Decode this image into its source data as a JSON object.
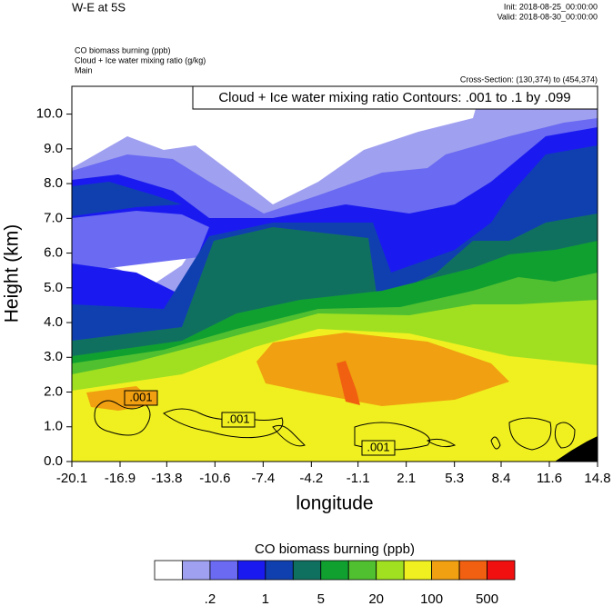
{
  "chart_data": {
    "type": "contour",
    "title": "W-E at 5S",
    "init": "Init: 2018-08-25_00:00:00",
    "valid": "Valid: 2018-08-30_00:00:00",
    "fields": [
      "CO biomass burning   (ppb)",
      "Cloud + Ice water mixing ratio   (g/kg)",
      "Main"
    ],
    "cross_section": "Cross-Section: (130,374) to (454,374)",
    "contour_info": "Cloud + Ice water mixing ratio Contours: .001 to .1 by .099",
    "contour_labels": [
      ".001",
      ".001",
      ".001"
    ],
    "xlabel": "longitude",
    "ylabel": "Height (km)",
    "xlim": [
      -20.1,
      14.8
    ],
    "xticks": [
      -20.1,
      -16.9,
      -13.8,
      -10.6,
      -7.4,
      -4.2,
      -1.1,
      2.1,
      5.3,
      8.4,
      11.6,
      14.8
    ],
    "ylim": [
      0,
      10.8
    ],
    "yticks": [
      {
        "value": 0,
        "label": "0.0"
      },
      {
        "value": 1,
        "label": "1.0"
      },
      {
        "value": 2,
        "label": "2.0"
      },
      {
        "value": 3,
        "label": "3.0"
      },
      {
        "value": 4,
        "label": "4.0"
      },
      {
        "value": 5,
        "label": "5.0"
      },
      {
        "value": 6,
        "label": "6.0"
      },
      {
        "value": 7,
        "label": "7.0"
      },
      {
        "value": 8,
        "label": "8.0"
      },
      {
        "value": 9,
        "label": "9.0"
      },
      {
        "value": 10,
        "label": "10.0"
      }
    ],
    "colorbar": {
      "title": "CO biomass burning  (ppb)",
      "colors": [
        "#ffffff",
        "#a0a0f0",
        "#6a6af2",
        "#1a1af0",
        "#1040b0",
        "#107060",
        "#10a030",
        "#50c030",
        "#a0e020",
        "#f0f020",
        "#f0a010",
        "#f06010",
        "#f01010"
      ],
      "levels": [
        {
          "value": 0.2,
          "label": ".2"
        },
        1,
        5,
        20,
        100,
        500
      ]
    }
  }
}
